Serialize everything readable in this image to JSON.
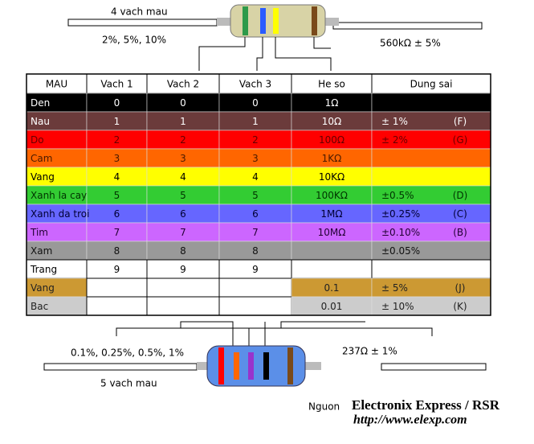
{
  "top": {
    "label": "4 vach mau",
    "tolerances": "2%, 5%, 10%",
    "example": "560kΩ ± 5%"
  },
  "table": {
    "header": [
      "MAU",
      "Vach 1",
      "Vach 2",
      "Vach 3",
      "He so",
      "Dung sai"
    ],
    "rows": [
      {
        "color": "#000000",
        "text_color": "#ffffff",
        "cells": [
          "Den",
          "0",
          "0",
          "0",
          "1Ω",
          null,
          null
        ]
      },
      {
        "color": "#6b3b3b",
        "text_color": "#ffffff",
        "cells": [
          "Nau",
          "1",
          "1",
          "1",
          "10Ω",
          "±  1%",
          "(F)"
        ]
      },
      {
        "color": "#ff0000",
        "text_color": "#660000",
        "cells": [
          "Do",
          "2",
          "2",
          "2",
          "100Ω",
          "±  2%",
          "(G)"
        ]
      },
      {
        "color": "#ff6600",
        "text_color": "#4a1a00",
        "cells": [
          "Cam",
          "3",
          "3",
          "3",
          "1KΩ",
          null,
          null
        ]
      },
      {
        "color": "#ffff00",
        "text_color": "#000000",
        "cells": [
          "Vang",
          "4",
          "4",
          "4",
          "10KΩ",
          null,
          null
        ]
      },
      {
        "color": "#33cc33",
        "text_color": "#003300",
        "cells": [
          "Xanh la cay",
          "5",
          "5",
          "5",
          "100KΩ",
          "±0.5%",
          "(D)"
        ]
      },
      {
        "color": "#6666ff",
        "text_color": "#000033",
        "cells": [
          "Xanh da troi",
          "6",
          "6",
          "6",
          "1MΩ",
          "±0.25%",
          "(C)"
        ]
      },
      {
        "color": "#cc66ff",
        "text_color": "#220033",
        "cells": [
          "Tim",
          "7",
          "7",
          "7",
          "10MΩ",
          "±0.10%",
          "(B)"
        ]
      },
      {
        "color": "#999999",
        "text_color": "#111111",
        "cells": [
          "Xam",
          "8",
          "8",
          "8",
          null,
          "±0.05%",
          null
        ]
      },
      {
        "color": "#ffffff",
        "text_color": "#000000",
        "cells": [
          "Trang",
          "9",
          "9",
          "9",
          null,
          null,
          null
        ]
      },
      {
        "color": "#cc9933",
        "text_color": "#222222",
        "digit_color": "#ffffff",
        "cells": [
          "Vang",
          null,
          null,
          null,
          "0.1",
          "±   5%",
          "(J)"
        ]
      },
      {
        "color": "#cccccc",
        "text_color": "#222222",
        "digit_color": "#ffffff",
        "cells": [
          "Bac",
          null,
          null,
          null,
          "0.01",
          "±  10%",
          "(K)"
        ]
      }
    ]
  },
  "bottom": {
    "label": "5 vach mau",
    "tolerances": "0.1%, 0.25%, 0.5%, 1%",
    "example": "237Ω ± 1%"
  },
  "source": {
    "label": "Nguon",
    "name": "Electronix  Express / RSR",
    "url": "http://www.elexp.com"
  }
}
